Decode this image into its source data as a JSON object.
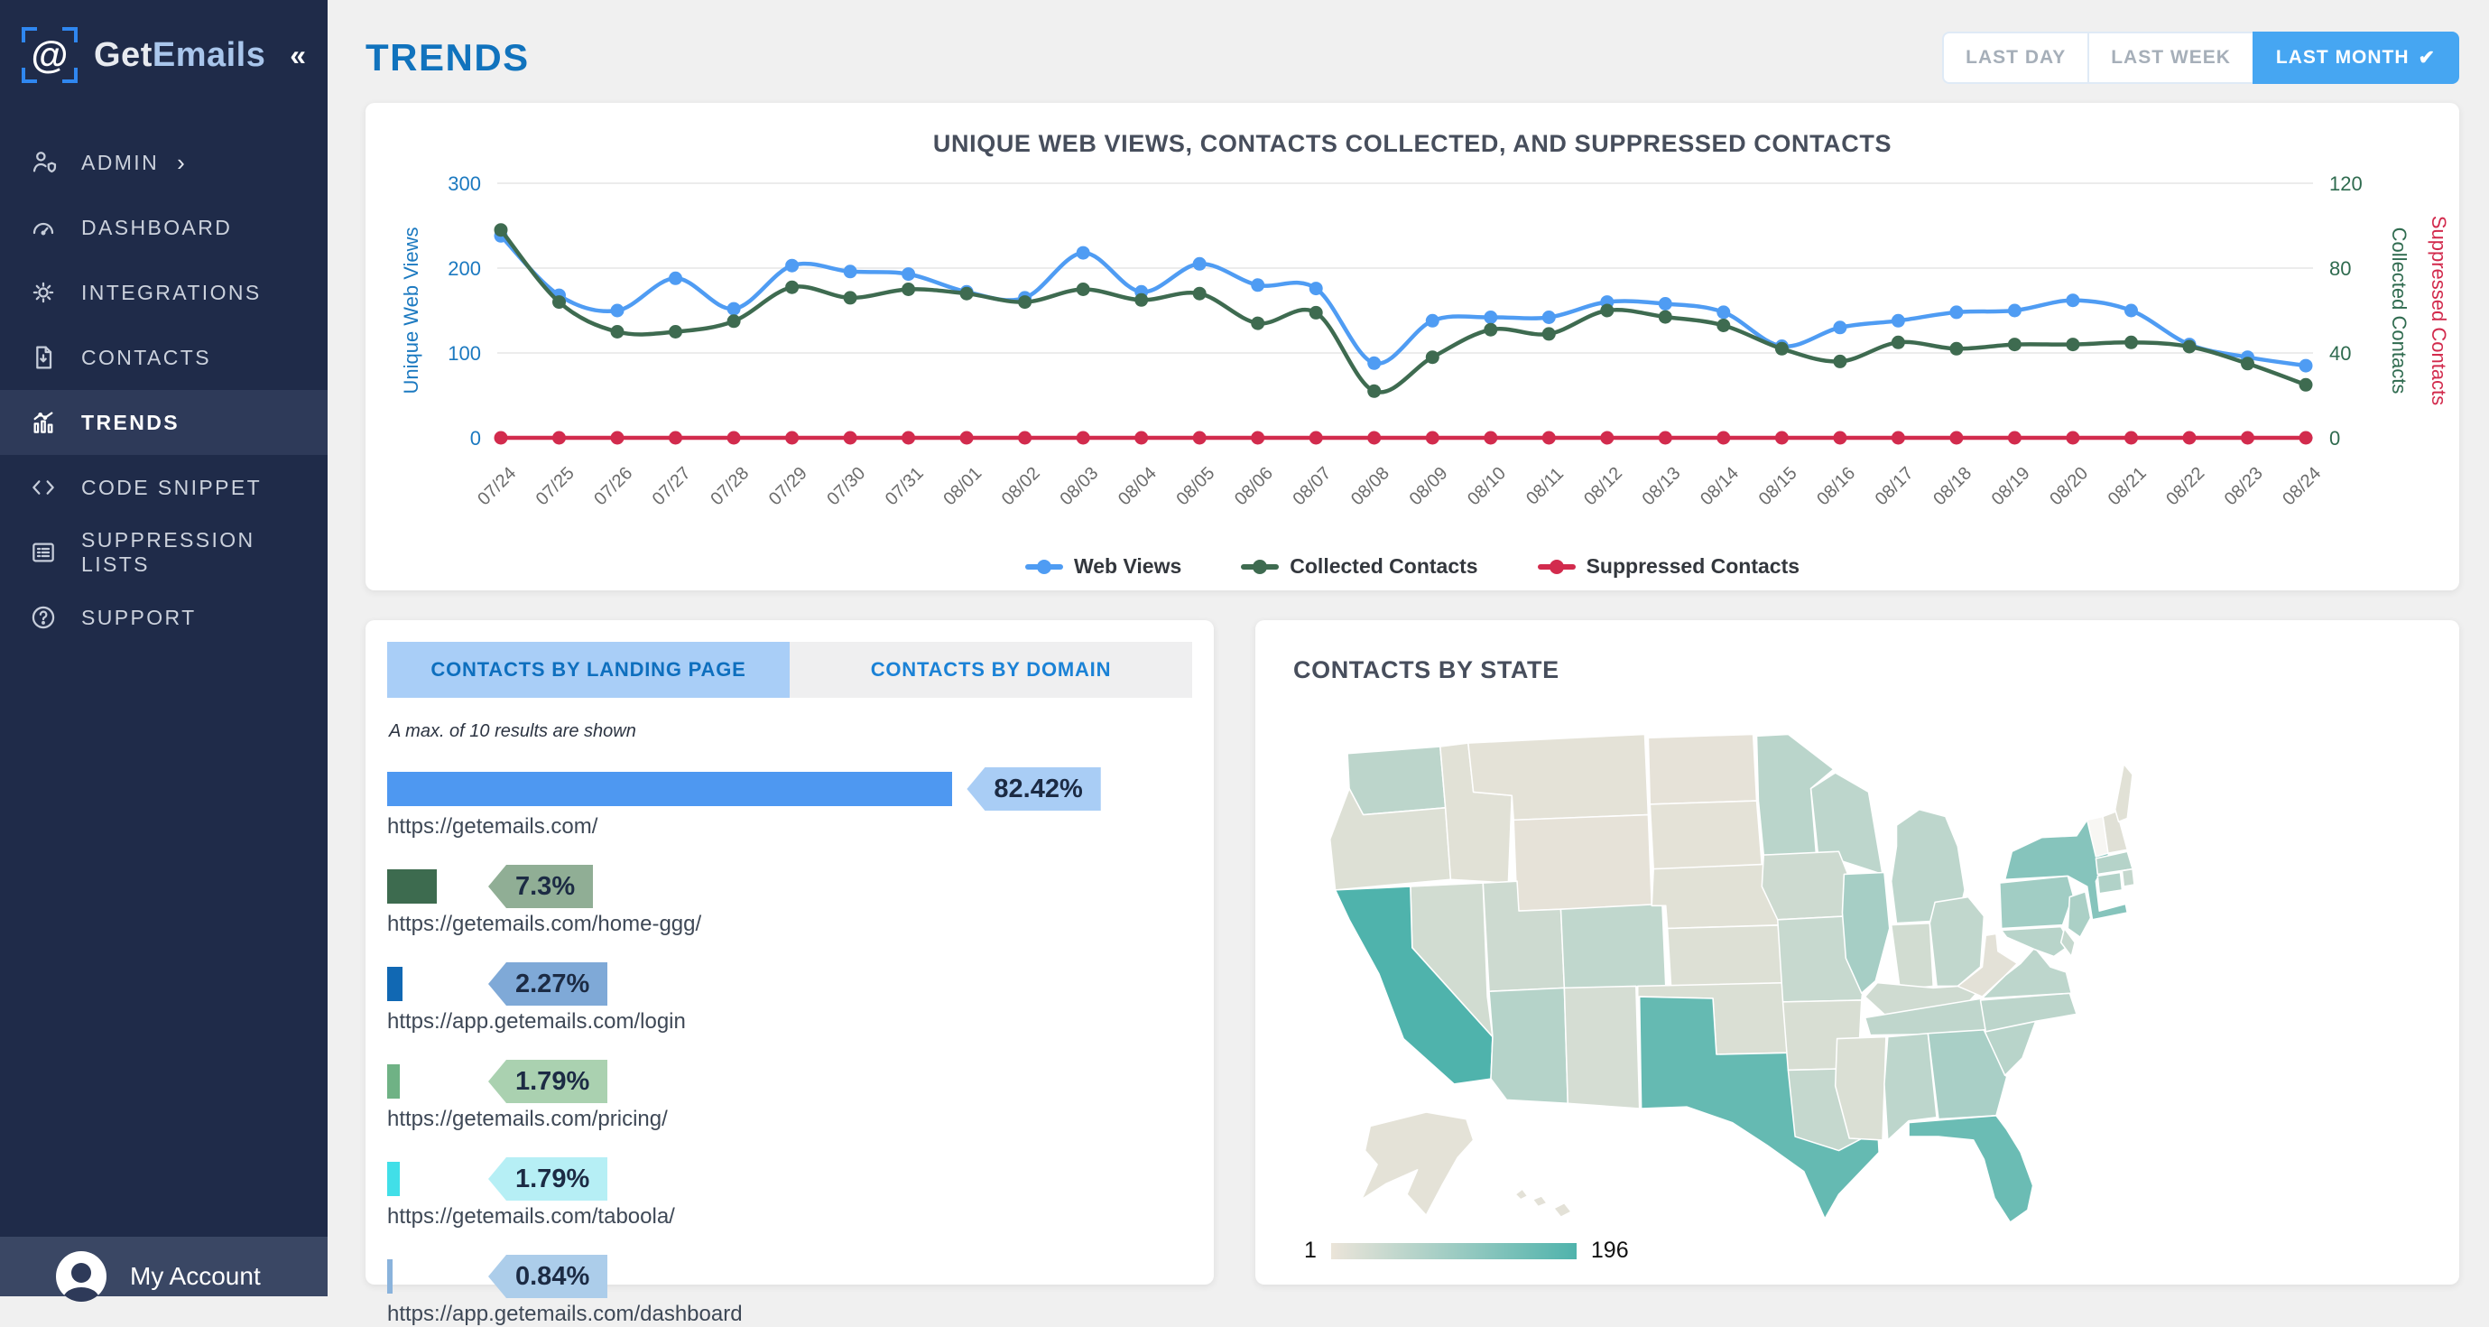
{
  "sidebar": {
    "logo_symbol": "@",
    "logo_text_1": "Get",
    "logo_text_2": "Emails",
    "collapse_icon": "«",
    "items": [
      {
        "label": "ADMIN",
        "icon": "admin",
        "chevron": "›",
        "active": false
      },
      {
        "label": "DASHBOARD",
        "icon": "dashboard",
        "active": false
      },
      {
        "label": "INTEGRATIONS",
        "icon": "integrations",
        "active": false
      },
      {
        "label": "CONTACTS",
        "icon": "contacts",
        "active": false
      },
      {
        "label": "TRENDS",
        "icon": "trends",
        "active": true
      },
      {
        "label": "CODE SNIPPET",
        "icon": "code",
        "active": false
      },
      {
        "label": "SUPPRESSION LISTS",
        "icon": "lists",
        "active": false
      },
      {
        "label": "SUPPORT",
        "icon": "support",
        "active": false
      }
    ],
    "account_label": "My Account"
  },
  "header": {
    "title": "TRENDS",
    "range_buttons": [
      {
        "label": "LAST DAY",
        "active": false
      },
      {
        "label": "LAST WEEK",
        "active": false
      },
      {
        "label": "LAST MONTH",
        "active": true,
        "check": "✔"
      }
    ]
  },
  "landing_card": {
    "tabs": [
      {
        "label": "CONTACTS BY LANDING PAGE",
        "active": true
      },
      {
        "label": "CONTACTS BY DOMAIN",
        "active": false
      }
    ],
    "note": "A max. of 10 results are shown",
    "rows": [
      {
        "pct": 82.42,
        "pct_label": "82.42%",
        "url": "https://getemails.com/",
        "bar_color": "#4e98f1",
        "badge_color": "#a9cdf5"
      },
      {
        "pct": 7.3,
        "pct_label": "7.3%",
        "url": "https://getemails.com/home-ggg/",
        "bar_color": "#3d6b4f",
        "badge_color": "#90ae95"
      },
      {
        "pct": 2.27,
        "pct_label": "2.27%",
        "url": "https://app.getemails.com/login",
        "bar_color": "#1168b3",
        "badge_color": "#7fa9d7"
      },
      {
        "pct": 1.79,
        "pct_label": "1.79%",
        "url": "https://getemails.com/pricing/",
        "bar_color": "#6fb285",
        "badge_color": "#aad1b0"
      },
      {
        "pct": 1.79,
        "pct_label": "1.79%",
        "url": "https://getemails.com/taboola/",
        "bar_color": "#41dfe8",
        "badge_color": "#b6eff5"
      },
      {
        "pct": 0.84,
        "pct_label": "0.84%",
        "url": "https://app.getemails.com/dashboard",
        "bar_color": "#8ab3dc",
        "badge_color": "#accdea"
      }
    ]
  },
  "state_card": {
    "legend_min": "1",
    "legend_max": "196"
  },
  "chart_data": [
    {
      "type": "line",
      "title": "UNIQUE WEB VIEWS, CONTACTS COLLECTED, AND SUPPRESSED CONTACTS",
      "x": [
        "07/24",
        "07/25",
        "07/26",
        "07/27",
        "07/28",
        "07/29",
        "07/30",
        "07/31",
        "08/01",
        "08/02",
        "08/03",
        "08/04",
        "08/05",
        "08/06",
        "08/07",
        "08/08",
        "08/09",
        "08/10",
        "08/11",
        "08/12",
        "08/13",
        "08/14",
        "08/15",
        "08/16",
        "08/17",
        "08/18",
        "08/19",
        "08/20",
        "08/21",
        "08/22",
        "08/23",
        "08/24"
      ],
      "left_axis": {
        "label": "Unique Web Views",
        "ticks": [
          0,
          100,
          200,
          300
        ],
        "max": 300,
        "color": "#1b79c0"
      },
      "right_axis": {
        "labels": [
          "Collected Contacts",
          "Suppressed Contacts"
        ],
        "colors": [
          "#2f6b4f",
          "#d22b4d"
        ],
        "ticks": [
          0,
          40,
          80,
          120
        ],
        "max": 120
      },
      "series": [
        {
          "name": "Web Views",
          "axis": "left",
          "color": "#4f9cf3",
          "values": [
            238,
            168,
            150,
            188,
            152,
            203,
            196,
            193,
            172,
            165,
            218,
            172,
            205,
            180,
            176,
            88,
            138,
            142,
            142,
            160,
            158,
            148,
            108,
            130,
            138,
            148,
            150,
            162,
            150,
            110,
            95,
            85
          ]
        },
        {
          "name": "Collected Contacts",
          "axis": "right",
          "color": "#3e6b50",
          "values": [
            98,
            64,
            50,
            50,
            55,
            71,
            66,
            70,
            68,
            64,
            70,
            65,
            68,
            54,
            59,
            22,
            38,
            51,
            49,
            60,
            57,
            53,
            42,
            36,
            45,
            42,
            44,
            44,
            45,
            43,
            35,
            25
          ]
        },
        {
          "name": "Suppressed Contacts",
          "axis": "right",
          "color": "#d22b4d",
          "values": [
            0,
            0,
            0,
            0,
            0,
            0,
            0,
            0,
            0,
            0,
            0,
            0,
            0,
            0,
            0,
            0,
            0,
            0,
            0,
            0,
            0,
            0,
            0,
            0,
            0,
            0,
            0,
            0,
            0,
            0,
            0,
            0
          ]
        }
      ],
      "grid": true,
      "legend_position": "bottom"
    },
    {
      "type": "choropleth",
      "title": "CONTACTS BY STATE",
      "min": 1,
      "max": 196,
      "min_color": "#ebe4d9",
      "max_color": "#4fb3ac",
      "values": {
        "WA": 40,
        "OR": 8,
        "CA": 196,
        "NV": 18,
        "ID": 5,
        "MT": 3,
        "WY": 2,
        "UT": 22,
        "CO": 35,
        "AZ": 48,
        "NM": 14,
        "ND": 2,
        "SD": 3,
        "NE": 5,
        "KS": 8,
        "OK": 10,
        "TX": 160,
        "MN": 42,
        "IA": 22,
        "MO": 28,
        "AR": 12,
        "LA": 30,
        "WI": 38,
        "IL": 66,
        "MS": 10,
        "MI": 38,
        "IN": 18,
        "OH": 34,
        "KY": 20,
        "TN": 36,
        "AL": 38,
        "GA": 62,
        "FL": 150,
        "SC": 44,
        "NC": 40,
        "VA": 38,
        "WV": 4,
        "PA": 72,
        "NY": 110,
        "NJ": 60,
        "MD": 44,
        "DE": 30,
        "CT": 52,
        "RI": 30,
        "MA": 48,
        "VT": 0,
        "NH": 6,
        "ME": 5,
        "AK": 3,
        "HI": 4
      }
    }
  ]
}
